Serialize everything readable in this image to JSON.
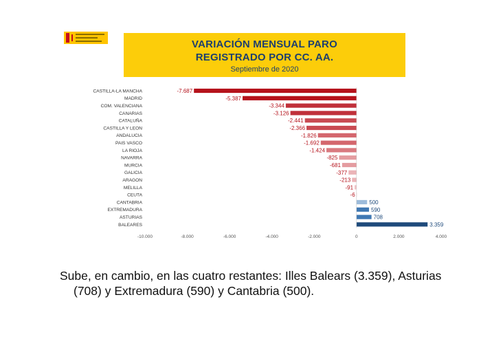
{
  "logo": {
    "alt": "Gobierno de España",
    "colors": {
      "red": "#c60b1e",
      "yellow": "#ffc400"
    }
  },
  "header": {
    "title_line1": "VARIACIÓN MENSUAL PARO",
    "title_line2": "REGISTRADO POR CC. AA.",
    "subtitle": "Septiembre de 2020"
  },
  "chart_data": {
    "type": "bar",
    "orientation": "horizontal",
    "title": "VARIACIÓN MENSUAL PARO REGISTRADO POR CC. AA.",
    "subtitle": "Septiembre de 2020",
    "xlim": [
      -10000,
      4000
    ],
    "xticks": [
      -10000,
      -8000,
      -6000,
      -4000,
      -2000,
      0,
      2000,
      4000
    ],
    "xtick_labels": [
      "-10.000",
      "-8.000",
      "-6.000",
      "-4.000",
      "-2.000",
      "0",
      "2.000",
      "4.000"
    ],
    "categories": [
      "CASTILLA-LA MANCHA",
      "MADRID",
      "COM. VALENCIANA",
      "CANARIAS",
      "CATALUÑA",
      "CASTILLA Y LEON",
      "ANDALUCIA",
      "PAIS VASCO",
      "LA RIOJA",
      "NAVARRA",
      "MURCIA",
      "GALICIA",
      "ARAGON",
      "MELILLA",
      "CEUTA",
      "CANTABRIA",
      "EXTREMADURA",
      "ASTURIAS",
      "BALEARES"
    ],
    "values": [
      -7687,
      -5387,
      -3344,
      -3126,
      -2441,
      -2366,
      -1826,
      -1692,
      -1424,
      -825,
      -681,
      -377,
      -213,
      -91,
      -6,
      500,
      590,
      708,
      3359
    ],
    "value_labels": [
      "-7.687",
      "-5.387",
      "-3.344",
      "-3.126",
      "-2.441",
      "-2.366",
      "-1.826",
      "-1.692",
      "-1.424",
      "-825",
      "-681",
      "-377",
      "-213",
      "-91",
      "-6",
      "500",
      "590",
      "708",
      "3.359"
    ],
    "colors": [
      "#b5121b",
      "#b5121b",
      "#c0303a",
      "#c0303a",
      "#c94a52",
      "#c94a52",
      "#d4666d",
      "#d4666d",
      "#d97a80",
      "#e49ca0",
      "#e49ca0",
      "#ebb4b7",
      "#ebb4b7",
      "#f0c4c6",
      "#f0c4c6",
      "#9dbcdb",
      "#3f78b3",
      "#3f78b3",
      "#1e4a7b"
    ],
    "negative_label_color": "#b5121b",
    "positive_label_color": "#1e4a7b"
  },
  "caption": {
    "line1": "Sube, en cambio, en las cuatro restantes:  Illes Balears (3.359), Asturias",
    "line2": "(708) y Extremadura (590) y Cantabria (500)."
  }
}
